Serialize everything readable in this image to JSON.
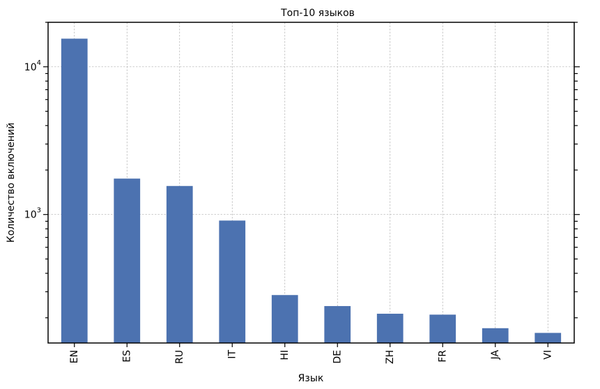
{
  "chart_data": {
    "type": "bar",
    "title": "Топ-10 языков",
    "xlabel": "Язык",
    "ylabel": "Количество включений",
    "categories": [
      "EN",
      "ES",
      "RU",
      "IT",
      "HI",
      "DE",
      "ZH",
      "FR",
      "JA",
      "VI"
    ],
    "values": [
      15500,
      1750,
      1560,
      910,
      285,
      240,
      213,
      210,
      170,
      158
    ],
    "yscale": "log",
    "ylim": [
      135,
      20000
    ],
    "y_tick_labels": [
      "10^4",
      "10^3"
    ],
    "grid": true,
    "bar_color": "#4c72b0"
  }
}
